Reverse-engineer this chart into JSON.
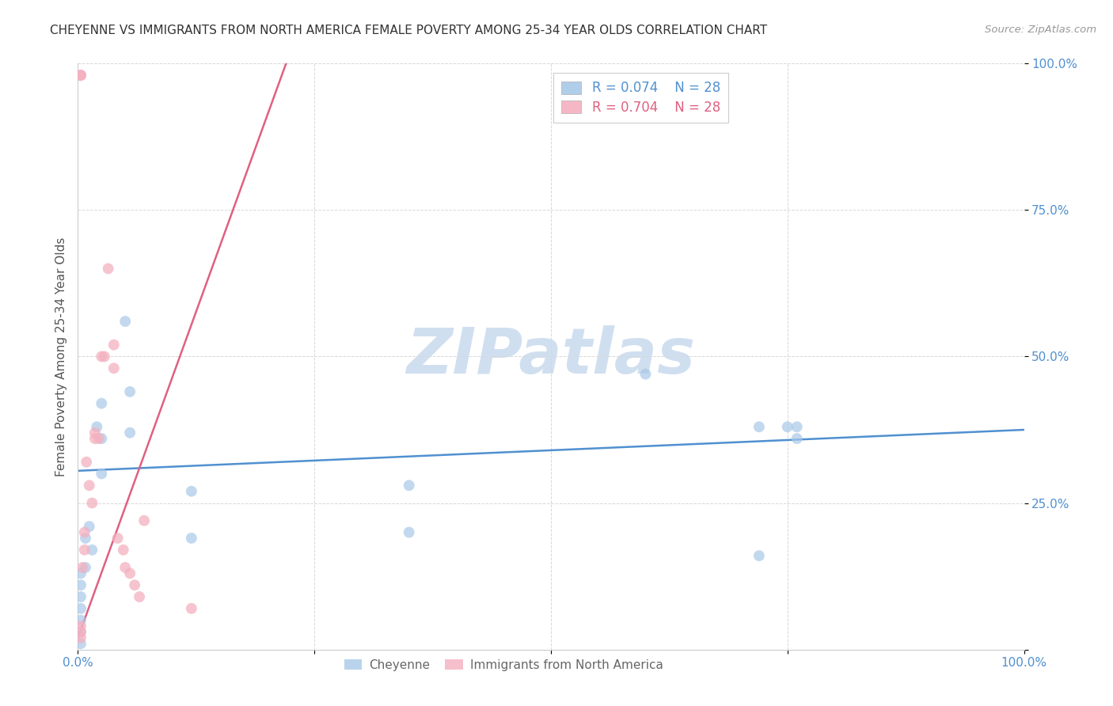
{
  "title": "CHEYENNE VS IMMIGRANTS FROM NORTH AMERICA FEMALE POVERTY AMONG 25-34 YEAR OLDS CORRELATION CHART",
  "source": "Source: ZipAtlas.com",
  "ylabel": "Female Poverty Among 25-34 Year Olds",
  "xlabel_cheyenne": "Cheyenne",
  "xlabel_immigrants": "Immigrants from North America",
  "xlim": [
    0,
    1.0
  ],
  "ylim": [
    0,
    1.0
  ],
  "xticks": [
    0.0,
    0.25,
    0.5,
    0.75,
    1.0
  ],
  "yticks": [
    0.0,
    0.25,
    0.5,
    0.75,
    1.0
  ],
  "blue_color": "#a8c8e8",
  "pink_color": "#f4b0c0",
  "blue_line_color": "#5090d0",
  "pink_line_color": "#e06080",
  "watermark_text": "ZIPatlas",
  "watermark_color": "#d0dff0",
  "background_color": "#ffffff",
  "grid_color": "#d8d8d8",
  "cheyenne_x": [
    0.003,
    0.003,
    0.003,
    0.003,
    0.003,
    0.003,
    0.003,
    0.008,
    0.008,
    0.012,
    0.015,
    0.02,
    0.025,
    0.025,
    0.025,
    0.05,
    0.055,
    0.055,
    0.12,
    0.12,
    0.35,
    0.35,
    0.6,
    0.72,
    0.72,
    0.75,
    0.76,
    0.76
  ],
  "cheyenne_y": [
    0.13,
    0.11,
    0.09,
    0.07,
    0.05,
    0.03,
    0.01,
    0.19,
    0.14,
    0.21,
    0.17,
    0.38,
    0.42,
    0.36,
    0.3,
    0.56,
    0.44,
    0.37,
    0.27,
    0.19,
    0.28,
    0.2,
    0.47,
    0.38,
    0.16,
    0.38,
    0.38,
    0.36
  ],
  "immigrants_x": [
    0.003,
    0.003,
    0.003,
    0.003,
    0.003,
    0.003,
    0.005,
    0.007,
    0.007,
    0.009,
    0.012,
    0.015,
    0.018,
    0.018,
    0.022,
    0.025,
    0.028,
    0.032,
    0.038,
    0.038,
    0.042,
    0.048,
    0.05,
    0.055,
    0.06,
    0.065,
    0.07,
    0.12
  ],
  "immigrants_y": [
    0.98,
    0.98,
    0.98,
    0.04,
    0.03,
    0.02,
    0.14,
    0.2,
    0.17,
    0.32,
    0.28,
    0.25,
    0.37,
    0.36,
    0.36,
    0.5,
    0.5,
    0.65,
    0.52,
    0.48,
    0.19,
    0.17,
    0.14,
    0.13,
    0.11,
    0.09,
    0.22,
    0.07
  ],
  "blue_trend_x": [
    0.0,
    1.0
  ],
  "blue_trend_y": [
    0.305,
    0.375
  ],
  "pink_trend_x": [
    0.0,
    0.22
  ],
  "pink_trend_y": [
    0.02,
    1.0
  ]
}
